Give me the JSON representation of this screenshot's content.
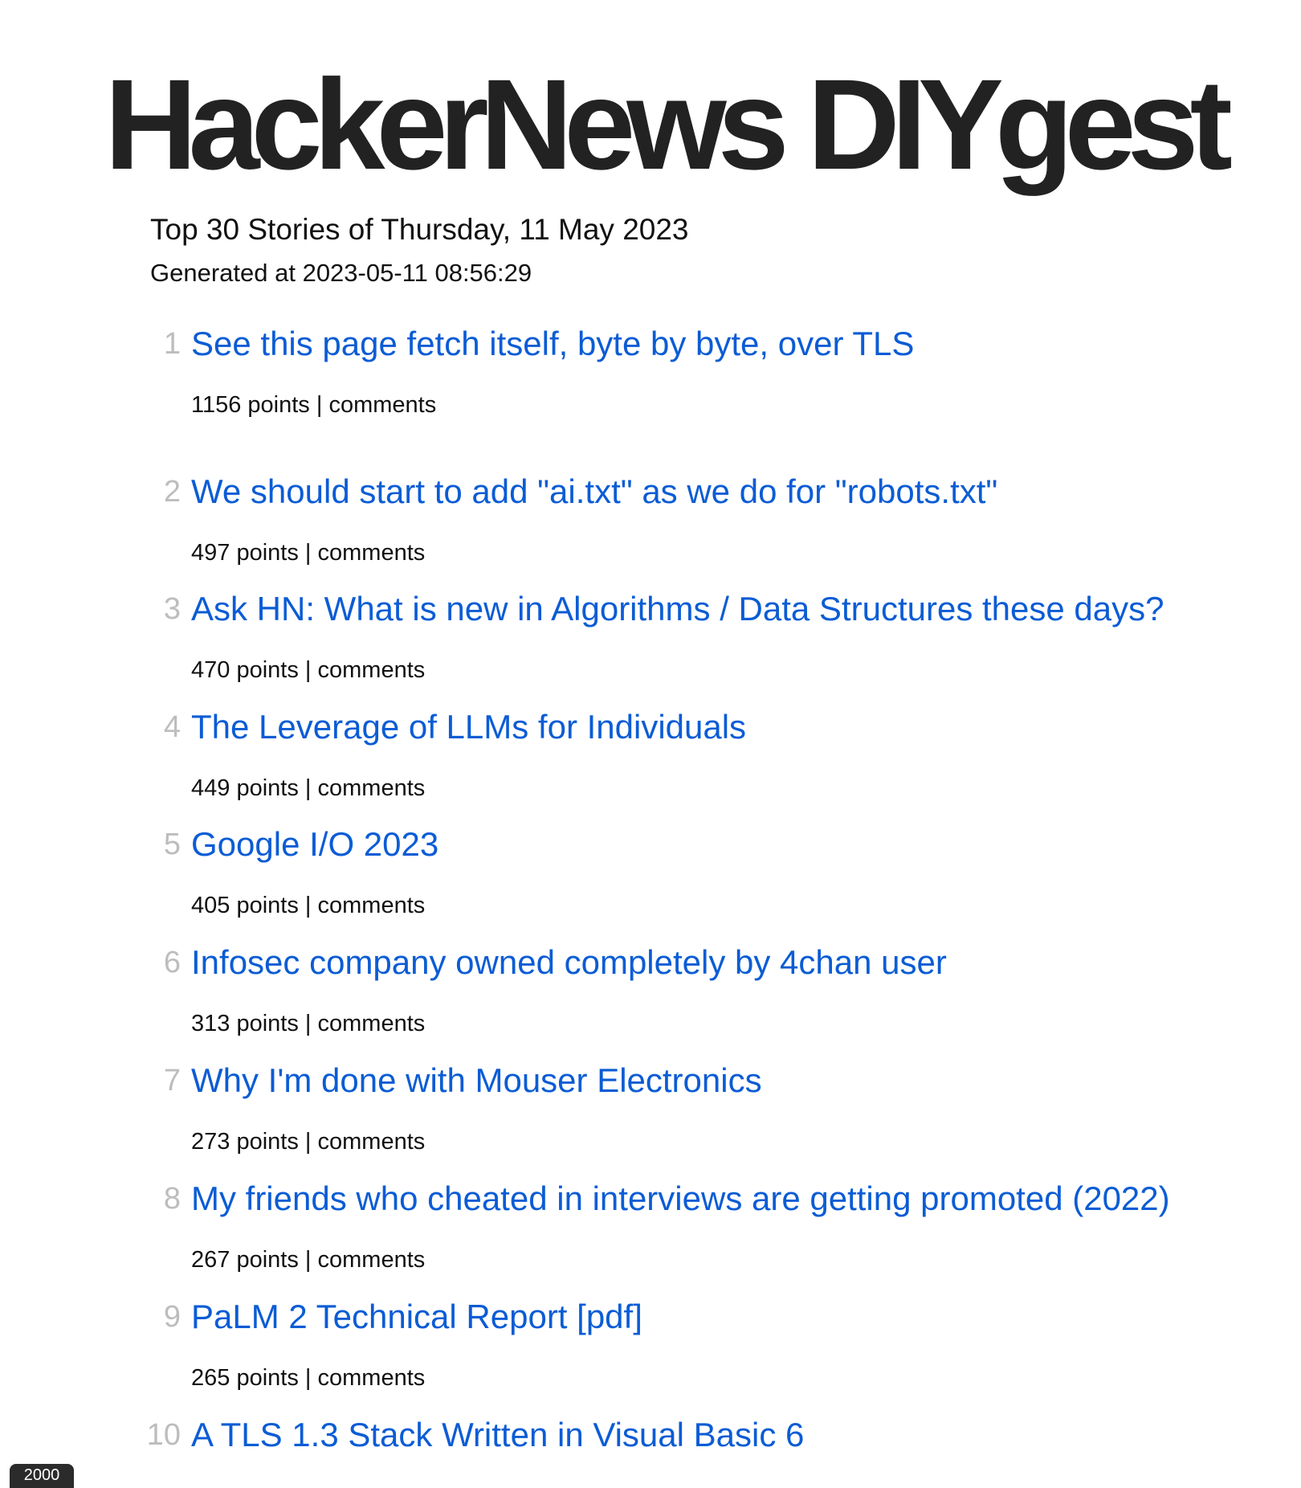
{
  "header": {
    "title": "HackerNews DIYgest",
    "subtitle": "Top 30 Stories of Thursday, 11 May 2023",
    "generated": "Generated at 2023-05-11 08:56:29"
  },
  "stories": [
    {
      "rank": "1",
      "title": "See this page fetch itself, byte by byte, over TLS",
      "points": "1156 points",
      "sep": "|",
      "comments": "comments"
    },
    {
      "rank": "2",
      "title": "We should start to add \"ai.txt\" as we do for \"robots.txt\"",
      "points": "497 points",
      "sep": "|",
      "comments": "comments"
    },
    {
      "rank": "3",
      "title": "Ask HN: What is new in Algorithms / Data Structures these days?",
      "points": "470 points",
      "sep": "|",
      "comments": "comments"
    },
    {
      "rank": "4",
      "title": "The Leverage of LLMs for Individuals",
      "points": "449 points",
      "sep": "|",
      "comments": "comments"
    },
    {
      "rank": "5",
      "title": "Google I/O 2023",
      "points": "405 points",
      "sep": "|",
      "comments": "comments"
    },
    {
      "rank": "6",
      "title": "Infosec company owned completely by 4chan user",
      "points": "313 points",
      "sep": "|",
      "comments": "comments"
    },
    {
      "rank": "7",
      "title": "Why I'm done with Mouser Electronics",
      "points": "273 points",
      "sep": "|",
      "comments": "comments"
    },
    {
      "rank": "8",
      "title": "My friends who cheated in interviews are getting promoted (2022)",
      "points": "267 points",
      "sep": "|",
      "comments": "comments"
    },
    {
      "rank": "9",
      "title": "PaLM 2 Technical Report [pdf]",
      "points": "265 points",
      "sep": "|",
      "comments": "comments"
    },
    {
      "rank": "10",
      "title": "A TLS 1.3 Stack Written in Visual Basic 6",
      "points": "",
      "sep": "",
      "comments": ""
    }
  ],
  "badge": {
    "label": "2000"
  },
  "colors": {
    "link": "#0b5cd5",
    "rank": "#bdbdbd",
    "title": "#222222"
  }
}
